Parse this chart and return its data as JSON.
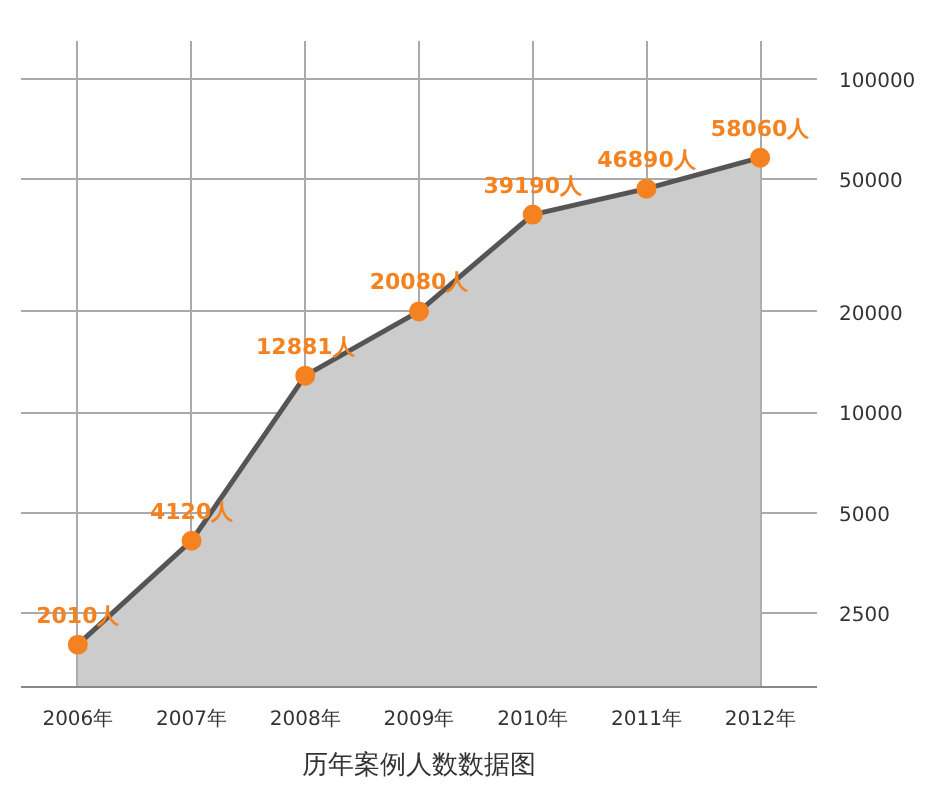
{
  "chart_data": {
    "type": "area",
    "title": "历年案例人数数据图",
    "categories": [
      "2006年",
      "2007年",
      "2008年",
      "2009年",
      "2010年",
      "2011年",
      "2012年"
    ],
    "values": [
      2010,
      4120,
      12881,
      20080,
      39190,
      46890,
      58060
    ],
    "value_labels": [
      "2010人",
      "4120人",
      "12881人",
      "20080人",
      "39190人",
      "46890人",
      "58060人"
    ],
    "color": "#cccccc",
    "marker": "circle",
    "log": "y",
    "grid": true,
    "ylim": [
      1500,
      130000
    ],
    "yticks": [
      2500,
      5000,
      10000,
      20000,
      50000,
      100000
    ]
  }
}
